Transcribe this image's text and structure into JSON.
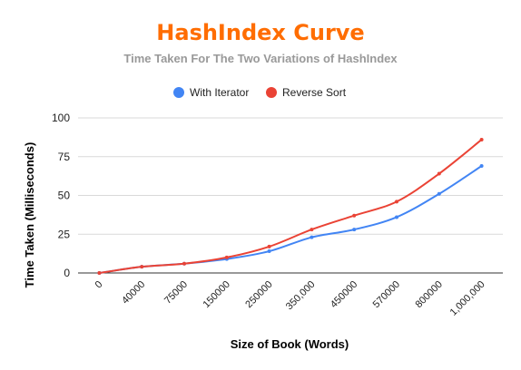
{
  "chart_data": {
    "type": "line",
    "title": "HashIndex Curve",
    "subtitle": "Time Taken For The Two Variations of HashIndex",
    "xlabel": "Size of Book (Words)",
    "ylabel": "Time Taken (Milliseconds)",
    "categories": [
      "0",
      "40000",
      "75000",
      "150000",
      "250000",
      "350,000",
      "450000",
      "570000",
      "800000",
      "1,000,000"
    ],
    "ylim": [
      0,
      100
    ],
    "yticks": [
      0,
      25,
      50,
      75,
      100
    ],
    "grid": true,
    "legend": "top",
    "series": [
      {
        "name": "With Iterator",
        "color": "#4285f4",
        "values": [
          0,
          4,
          6,
          9,
          14,
          23,
          28,
          36,
          51,
          69
        ]
      },
      {
        "name": "Reverse Sort",
        "color": "#ea4335",
        "values": [
          0,
          4,
          6,
          10,
          17,
          28,
          37,
          46,
          64,
          86
        ]
      }
    ]
  }
}
